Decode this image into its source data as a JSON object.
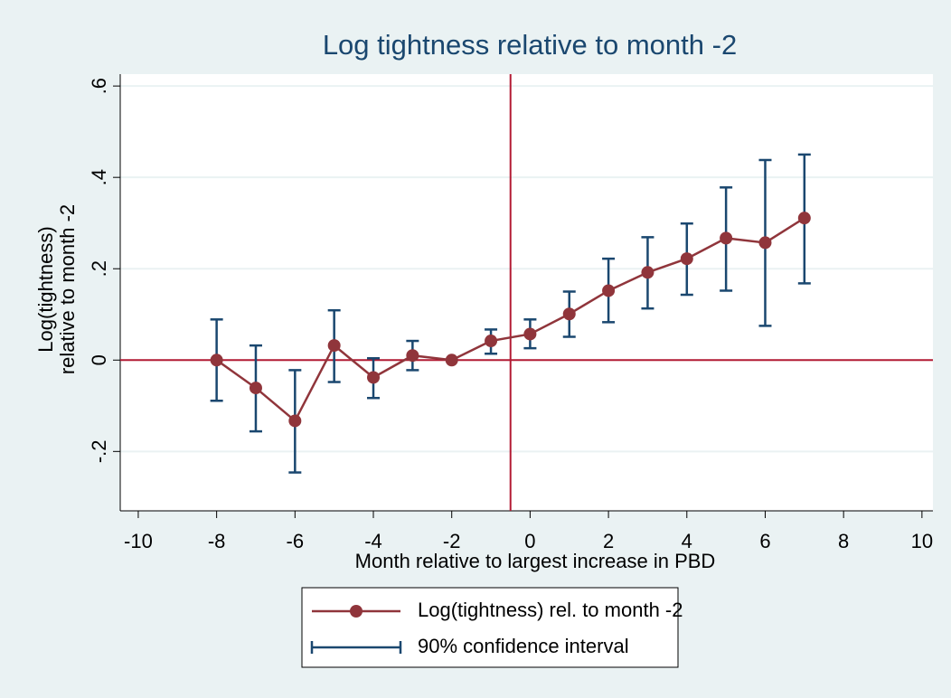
{
  "chart_data": {
    "type": "line",
    "title": "Log tightness relative to month -2",
    "xlabel": "Month relative to largest increase in PBD",
    "ylabel": [
      "Log(tightness)",
      "relative to month -2"
    ],
    "x": [
      -8,
      -7,
      -6,
      -5,
      -4,
      -3,
      -2,
      -1,
      0,
      1,
      2,
      3,
      4,
      5,
      6,
      7
    ],
    "series": [
      {
        "name": "Log(tightness) rel. to month -2",
        "color": "#90353b",
        "values": [
          0,
          -0.061,
          -0.133,
          0.032,
          -0.038,
          0.01,
          0,
          0.042,
          0.057,
          0.101,
          0.152,
          0.192,
          0.222,
          0.267,
          0.257,
          0.311
        ]
      },
      {
        "name": "90% confidence interval",
        "color": "#1a476f",
        "low": [
          -0.089,
          -0.156,
          -0.246,
          -0.048,
          -0.083,
          -0.022,
          null,
          0.014,
          0.026,
          0.051,
          0.083,
          0.113,
          0.143,
          0.152,
          0.075,
          0.168
        ],
        "high": [
          0.089,
          0.032,
          -0.022,
          0.109,
          0.004,
          0.042,
          null,
          0.067,
          0.089,
          0.15,
          0.222,
          0.269,
          0.299,
          0.378,
          0.438,
          0.45
        ]
      }
    ],
    "xlim": [
      -10.46,
      10.28
    ],
    "ylim": [
      -0.33,
      0.626
    ],
    "xticks": [
      -10,
      -8,
      -6,
      -4,
      -2,
      0,
      2,
      4,
      6,
      8,
      10
    ],
    "yticks": [
      {
        "value": -0.2,
        "label": "-.2"
      },
      0,
      {
        "value": 0.2,
        "label": ".2"
      },
      {
        "value": 0.4,
        "label": ".4"
      },
      {
        "value": 0.6,
        "label": ".6"
      }
    ],
    "xline": -0.5,
    "yline": 0,
    "refline_color": "#b31b34",
    "grid": true
  }
}
